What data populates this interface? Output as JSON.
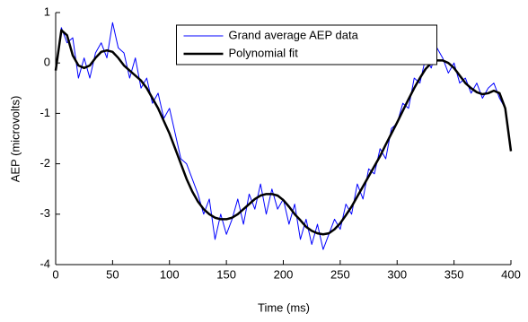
{
  "chart_data": {
    "type": "line",
    "xlabel": "Time (ms)",
    "ylabel": "AEP (microvolts)",
    "x": [
      0,
      5,
      10,
      15,
      20,
      25,
      30,
      35,
      40,
      45,
      50,
      55,
      60,
      65,
      70,
      75,
      80,
      85,
      90,
      95,
      100,
      105,
      110,
      115,
      120,
      125,
      130,
      135,
      140,
      145,
      150,
      155,
      160,
      165,
      170,
      175,
      180,
      185,
      190,
      195,
      200,
      205,
      210,
      215,
      220,
      225,
      230,
      235,
      240,
      245,
      250,
      255,
      260,
      265,
      270,
      275,
      280,
      285,
      290,
      295,
      300,
      305,
      310,
      315,
      320,
      325,
      330,
      335,
      340,
      345,
      350,
      355,
      360,
      365,
      370,
      375,
      380,
      385,
      390,
      395,
      400
    ],
    "series": [
      {
        "name": "Grand average AEP data",
        "color": "#0000ff",
        "width": 1,
        "values": [
          -0.1,
          0.7,
          0.4,
          0.5,
          -0.3,
          0.1,
          -0.3,
          0.2,
          0.4,
          0.1,
          0.8,
          0.3,
          0.2,
          -0.3,
          0.1,
          -0.5,
          -0.3,
          -0.8,
          -0.6,
          -1.1,
          -0.9,
          -1.4,
          -1.9,
          -2.0,
          -2.3,
          -2.6,
          -3.0,
          -2.7,
          -3.5,
          -3.0,
          -3.4,
          -3.1,
          -2.7,
          -3.2,
          -2.6,
          -2.9,
          -2.4,
          -3.0,
          -2.5,
          -2.9,
          -2.7,
          -3.2,
          -2.8,
          -3.5,
          -3.1,
          -3.6,
          -3.2,
          -3.7,
          -3.4,
          -3.1,
          -3.3,
          -2.8,
          -3.0,
          -2.4,
          -2.7,
          -2.1,
          -2.2,
          -1.7,
          -1.9,
          -1.3,
          -1.2,
          -0.8,
          -0.9,
          -0.3,
          -0.4,
          0.1,
          -0.1,
          0.3,
          0.1,
          -0.2,
          0.0,
          -0.4,
          -0.3,
          -0.6,
          -0.4,
          -0.7,
          -0.5,
          -0.4,
          -0.7,
          -0.9,
          -1.7
        ]
      },
      {
        "name": "Polynomial fit",
        "color": "#000000",
        "width": 2.5,
        "values": [
          -0.15,
          0.65,
          0.55,
          0.15,
          -0.05,
          -0.1,
          -0.05,
          0.1,
          0.22,
          0.25,
          0.22,
          0.1,
          -0.05,
          -0.15,
          -0.25,
          -0.35,
          -0.5,
          -0.7,
          -0.9,
          -1.15,
          -1.4,
          -1.7,
          -2.0,
          -2.3,
          -2.55,
          -2.75,
          -2.9,
          -3.0,
          -3.07,
          -3.1,
          -3.1,
          -3.07,
          -3.0,
          -2.9,
          -2.8,
          -2.7,
          -2.63,
          -2.6,
          -2.6,
          -2.63,
          -2.72,
          -2.85,
          -3.0,
          -3.12,
          -3.25,
          -3.33,
          -3.38,
          -3.4,
          -3.38,
          -3.3,
          -3.18,
          -3.02,
          -2.85,
          -2.65,
          -2.45,
          -2.25,
          -2.05,
          -1.85,
          -1.62,
          -1.4,
          -1.18,
          -0.95,
          -0.72,
          -0.5,
          -0.3,
          -0.12,
          0.0,
          0.05,
          0.05,
          0.0,
          -0.1,
          -0.25,
          -0.4,
          -0.5,
          -0.58,
          -0.62,
          -0.6,
          -0.55,
          -0.6,
          -0.9,
          -1.75
        ]
      }
    ],
    "xlim": [
      0,
      400
    ],
    "xticks": [
      0,
      50,
      100,
      150,
      200,
      250,
      300,
      350,
      400
    ],
    "ylim": [
      -4,
      1
    ],
    "yticks": [
      -4,
      -3,
      -2,
      -1,
      0,
      1
    ],
    "grid": false,
    "legend": "upper center"
  }
}
